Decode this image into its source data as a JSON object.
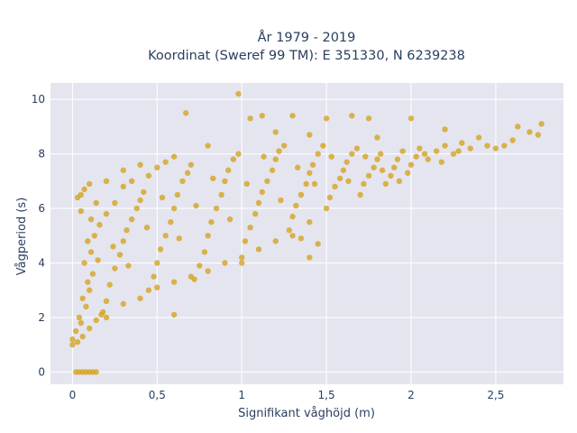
{
  "chart_data": {
    "type": "scatter",
    "title": "År 1979 - 2019",
    "subtitle": "Koordinat (Sweref 99 TM): E 351330, N 6239238",
    "xlabel": "Signifikant våghöjd (m)",
    "ylabel": "Vågperiod (s)",
    "xlim": [
      -0.13,
      2.9
    ],
    "ylim": [
      -0.45,
      10.6
    ],
    "x_ticks": [
      0,
      0.5,
      1,
      1.5,
      2,
      2.5
    ],
    "x_tick_labels": [
      "0",
      "0,5",
      "1",
      "1,5",
      "2",
      "2,5"
    ],
    "y_ticks": [
      0,
      2,
      4,
      6,
      8,
      10
    ],
    "y_tick_labels": [
      "0",
      "2",
      "4",
      "6",
      "8",
      "10"
    ],
    "grid": true,
    "background_color": "#e5e5f0",
    "marker_color": "#d4a421",
    "series": [
      {
        "points": [
          [
            0.0,
            1.2
          ],
          [
            0.02,
            1.5
          ],
          [
            0.05,
            1.8
          ],
          [
            0.08,
            2.4
          ],
          [
            0.1,
            3.0
          ],
          [
            0.12,
            3.6
          ],
          [
            0.15,
            4.1
          ],
          [
            0.04,
            2.0
          ],
          [
            0.06,
            2.7
          ],
          [
            0.09,
            3.3
          ],
          [
            0.11,
            4.4
          ],
          [
            0.13,
            5.0
          ],
          [
            0.16,
            5.4
          ],
          [
            0.05,
            5.9
          ],
          [
            0.03,
            6.4
          ],
          [
            0.07,
            6.7
          ],
          [
            0.18,
            2.2
          ],
          [
            0.2,
            2.6
          ],
          [
            0.22,
            3.2
          ],
          [
            0.25,
            3.8
          ],
          [
            0.28,
            4.3
          ],
          [
            0.3,
            4.8
          ],
          [
            0.32,
            5.2
          ],
          [
            0.35,
            5.6
          ],
          [
            0.38,
            6.0
          ],
          [
            0.4,
            6.3
          ],
          [
            0.42,
            6.6
          ],
          [
            0.2,
            5.8
          ],
          [
            0.25,
            6.2
          ],
          [
            0.3,
            6.8
          ],
          [
            0.35,
            7.0
          ],
          [
            0.45,
            3.0
          ],
          [
            0.48,
            3.5
          ],
          [
            0.5,
            4.0
          ],
          [
            0.52,
            4.5
          ],
          [
            0.55,
            5.0
          ],
          [
            0.58,
            5.5
          ],
          [
            0.6,
            6.0
          ],
          [
            0.62,
            6.5
          ],
          [
            0.65,
            7.0
          ],
          [
            0.68,
            7.3
          ],
          [
            0.7,
            7.6
          ],
          [
            0.55,
            7.7
          ],
          [
            0.5,
            7.5
          ],
          [
            0.45,
            7.2
          ],
          [
            0.72,
            3.4
          ],
          [
            0.75,
            3.9
          ],
          [
            0.78,
            4.4
          ],
          [
            0.8,
            5.0
          ],
          [
            0.82,
            5.5
          ],
          [
            0.85,
            6.0
          ],
          [
            0.88,
            6.5
          ],
          [
            0.9,
            7.0
          ],
          [
            0.92,
            7.4
          ],
          [
            0.95,
            7.8
          ],
          [
            0.98,
            8.0
          ],
          [
            1.0,
            4.2
          ],
          [
            1.02,
            4.8
          ],
          [
            1.05,
            5.3
          ],
          [
            1.08,
            5.8
          ],
          [
            1.1,
            6.2
          ],
          [
            1.12,
            6.6
          ],
          [
            1.15,
            7.0
          ],
          [
            1.18,
            7.4
          ],
          [
            1.2,
            7.8
          ],
          [
            1.22,
            8.1
          ],
          [
            1.25,
            8.3
          ],
          [
            1.28,
            5.2
          ],
          [
            1.3,
            5.7
          ],
          [
            1.32,
            6.1
          ],
          [
            1.35,
            6.5
          ],
          [
            1.38,
            6.9
          ],
          [
            1.4,
            7.3
          ],
          [
            1.42,
            7.6
          ],
          [
            1.45,
            8.0
          ],
          [
            1.48,
            8.3
          ],
          [
            1.5,
            6.0
          ],
          [
            1.52,
            6.4
          ],
          [
            1.55,
            6.8
          ],
          [
            1.58,
            7.1
          ],
          [
            1.6,
            7.4
          ],
          [
            1.62,
            7.7
          ],
          [
            1.65,
            8.0
          ],
          [
            1.68,
            8.2
          ],
          [
            1.7,
            6.5
          ],
          [
            1.72,
            6.9
          ],
          [
            1.75,
            7.2
          ],
          [
            1.78,
            7.5
          ],
          [
            1.8,
            7.8
          ],
          [
            1.82,
            8.0
          ],
          [
            1.85,
            6.9
          ],
          [
            1.88,
            7.2
          ],
          [
            1.9,
            7.5
          ],
          [
            1.92,
            7.8
          ],
          [
            1.95,
            8.1
          ],
          [
            1.98,
            7.3
          ],
          [
            2.0,
            7.6
          ],
          [
            2.03,
            7.9
          ],
          [
            2.05,
            8.2
          ],
          [
            2.1,
            7.8
          ],
          [
            2.15,
            8.1
          ],
          [
            2.2,
            8.3
          ],
          [
            2.25,
            8.0
          ],
          [
            2.3,
            8.4
          ],
          [
            2.35,
            8.2
          ],
          [
            2.4,
            8.6
          ],
          [
            2.45,
            8.3
          ],
          [
            2.5,
            8.2
          ],
          [
            2.55,
            8.3
          ],
          [
            2.6,
            8.5
          ],
          [
            2.63,
            9.0
          ],
          [
            2.7,
            8.8
          ],
          [
            2.75,
            8.7
          ],
          [
            2.77,
            9.1
          ],
          [
            0.98,
            10.2
          ],
          [
            0.67,
            9.5
          ],
          [
            1.05,
            9.3
          ],
          [
            1.12,
            9.4
          ],
          [
            1.3,
            9.4
          ],
          [
            1.5,
            9.3
          ],
          [
            1.65,
            9.4
          ],
          [
            1.75,
            9.3
          ],
          [
            2.0,
            9.3
          ],
          [
            1.2,
            8.8
          ],
          [
            1.4,
            8.7
          ],
          [
            1.8,
            8.6
          ],
          [
            2.2,
            8.9
          ],
          [
            0.8,
            8.3
          ],
          [
            0.6,
            7.9
          ],
          [
            0.4,
            7.6
          ],
          [
            0.3,
            7.4
          ],
          [
            0.2,
            7.0
          ],
          [
            0.1,
            6.9
          ],
          [
            0.05,
            6.5
          ],
          [
            0.17,
            2.1
          ],
          [
            0.6,
            2.1
          ],
          [
            1.4,
            4.2
          ],
          [
            1.45,
            4.7
          ],
          [
            1.35,
            4.9
          ],
          [
            0.02,
            0.0
          ],
          [
            0.04,
            0.0
          ],
          [
            0.06,
            0.0
          ],
          [
            0.08,
            0.0
          ],
          [
            0.1,
            0.0
          ],
          [
            0.12,
            0.0
          ],
          [
            0.14,
            0.0
          ],
          [
            0.0,
            1.0
          ],
          [
            0.03,
            1.1
          ],
          [
            0.06,
            1.3
          ],
          [
            0.1,
            1.6
          ],
          [
            0.14,
            1.9
          ],
          [
            0.2,
            2.0
          ],
          [
            0.3,
            2.5
          ],
          [
            0.4,
            2.7
          ],
          [
            0.5,
            3.1
          ],
          [
            0.6,
            3.3
          ],
          [
            0.7,
            3.5
          ],
          [
            0.8,
            3.7
          ],
          [
            0.9,
            4.0
          ],
          [
            1.0,
            4.0
          ],
          [
            1.1,
            4.5
          ],
          [
            1.2,
            4.8
          ],
          [
            1.3,
            5.0
          ],
          [
            1.4,
            5.5
          ],
          [
            0.07,
            4.0
          ],
          [
            0.09,
            4.8
          ],
          [
            0.11,
            5.6
          ],
          [
            0.14,
            6.2
          ],
          [
            0.24,
            4.6
          ],
          [
            0.33,
            3.9
          ],
          [
            0.44,
            5.3
          ],
          [
            0.53,
            6.4
          ],
          [
            0.63,
            4.9
          ],
          [
            0.73,
            6.1
          ],
          [
            0.83,
            7.1
          ],
          [
            0.93,
            5.6
          ],
          [
            1.03,
            6.9
          ],
          [
            1.13,
            7.9
          ],
          [
            1.23,
            6.3
          ],
          [
            1.33,
            7.5
          ],
          [
            1.43,
            6.9
          ],
          [
            1.53,
            7.9
          ],
          [
            1.63,
            7.0
          ],
          [
            1.73,
            7.9
          ],
          [
            1.83,
            7.4
          ],
          [
            1.93,
            7.0
          ],
          [
            2.08,
            8.0
          ],
          [
            2.18,
            7.7
          ],
          [
            2.28,
            8.1
          ]
        ]
      }
    ]
  }
}
